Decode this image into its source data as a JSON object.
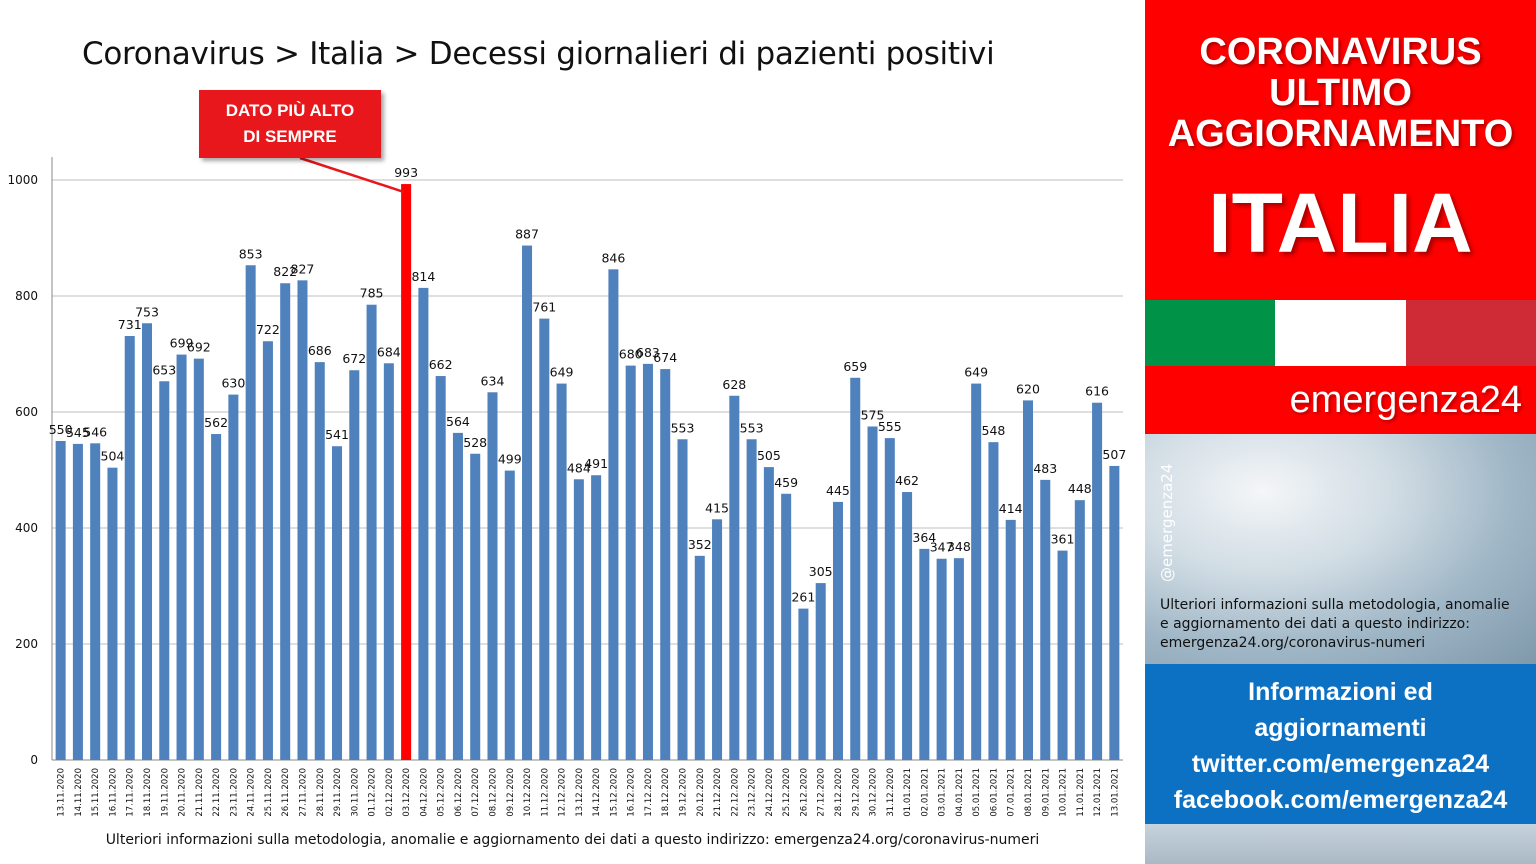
{
  "chart_data": {
    "type": "bar",
    "title": "Coronavirus > Italia > Decessi giornalieri di pazienti positivi",
    "ylim": [
      0,
      1000
    ],
    "yticks": [
      0,
      200,
      400,
      600,
      800,
      1000
    ],
    "grid": true,
    "highlight_index": 20,
    "colors": {
      "bar": "#4f81bd",
      "highlight": "#ff0000"
    },
    "categories": [
      "13.11.2020",
      "14.11.2020",
      "15.11.2020",
      "16.11.2020",
      "17.11.2020",
      "18.11.2020",
      "19.11.2020",
      "20.11.2020",
      "21.11.2020",
      "22.11.2020",
      "23.11.2020",
      "24.11.2020",
      "25.11.2020",
      "26.11.2020",
      "27.11.2020",
      "28.11.2020",
      "29.11.2020",
      "30.11.2020",
      "01.12.2020",
      "02.12.2020",
      "03.12.2020",
      "04.12.2020",
      "05.12.2020",
      "06.12.2020",
      "07.12.2020",
      "08.12.2020",
      "09.12.2020",
      "10.12.2020",
      "11.12.2020",
      "12.12.2020",
      "13.12.2020",
      "14.12.2020",
      "15.12.2020",
      "16.12.2020",
      "17.12.2020",
      "18.12.2020",
      "19.12.2020",
      "20.12.2020",
      "21.12.2020",
      "22.12.2020",
      "23.12.2020",
      "24.12.2020",
      "25.12.2020",
      "26.12.2020",
      "27.12.2020",
      "28.12.2020",
      "29.12.2020",
      "30.12.2020",
      "31.12.2020",
      "01.01.2021",
      "02.01.2021",
      "03.01.2021",
      "04.01.2021",
      "05.01.2021",
      "06.01.2021",
      "07.01.2021",
      "08.01.2021",
      "09.01.2021",
      "10.01.2021",
      "11.01.2021",
      "12.01.2021",
      "13.01.2021"
    ],
    "values": [
      550,
      545,
      546,
      504,
      731,
      753,
      653,
      699,
      692,
      562,
      630,
      853,
      722,
      822,
      827,
      686,
      541,
      672,
      785,
      684,
      993,
      814,
      662,
      564,
      528,
      634,
      499,
      887,
      761,
      649,
      484,
      491,
      846,
      680,
      683,
      674,
      553,
      352,
      415,
      628,
      553,
      505,
      459,
      261,
      305,
      445,
      659,
      575,
      555,
      462,
      364,
      347,
      348,
      649,
      548,
      414,
      620,
      483,
      361,
      448,
      616,
      507
    ]
  },
  "callout": {
    "line1": "DATO PIÙ ALTO",
    "line2": "DI SEMPRE"
  },
  "footer_note": "Ulteriori informazioni sulla metodologia, anomalie e aggiornamento dei dati a questo indirizzo: emergenza24.org/coronavirus-numeri",
  "side": {
    "line1": "CORONAVIRUS",
    "line2": "ULTIMO",
    "line3": "AGGIORNAMENTO",
    "country": "ITALIA",
    "brand": "emergenza24",
    "handle": "@emergenza24",
    "info_line1": "Ulteriori informazioni sulla metodologia, anomalie",
    "info_line2": "e aggiornamento dei dati a questo indirizzo:",
    "info_line3": "emergenza24.org/coronavirus-numeri",
    "social_line1": "Informazioni ed",
    "social_line2": "aggiornamenti",
    "social_line3": "twitter.com/emergenza24",
    "social_line4": "facebook.com/emergenza24",
    "colors": {
      "red": "#fe0000",
      "flag_green": "#009246",
      "flag_white": "#ffffff",
      "flag_red": "#ce2b37",
      "blue": "#0c70c3"
    }
  }
}
